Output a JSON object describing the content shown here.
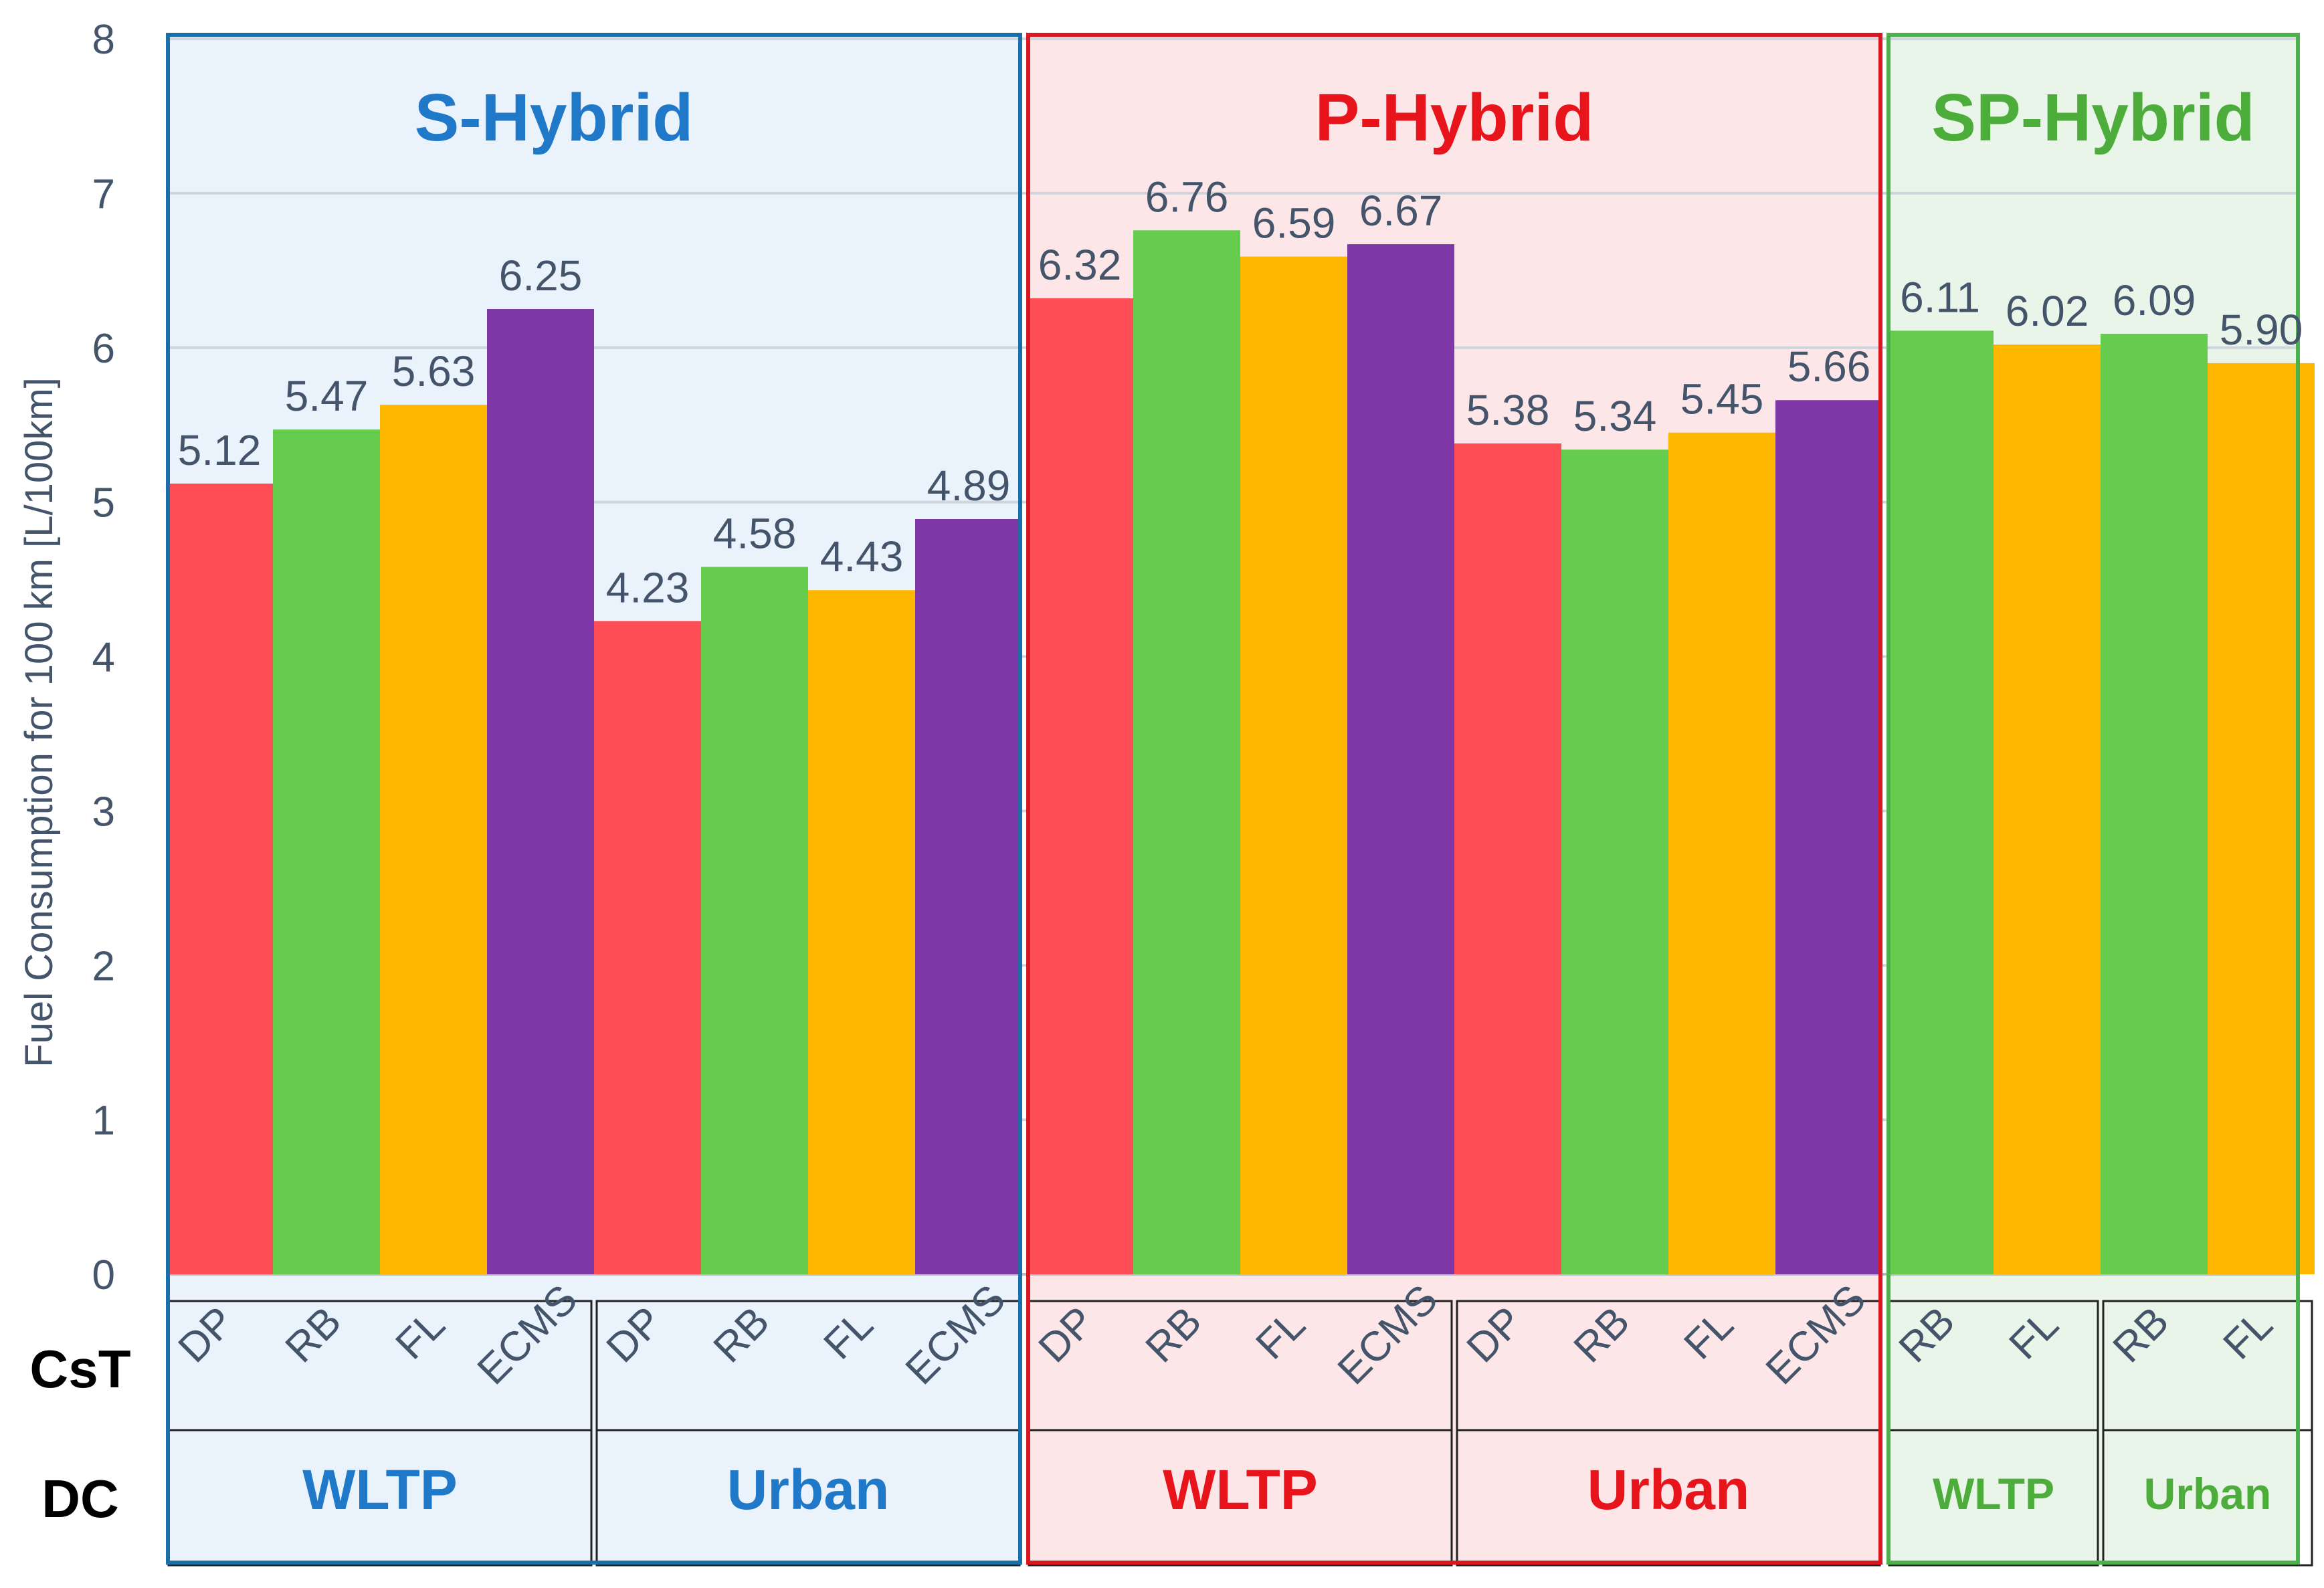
{
  "colors": {
    "s_hybrid": "#1f78c8",
    "p_hybrid": "#e8141c",
    "sp_hybrid": "#4cad3a",
    "DP": "#ff4d55",
    "RB": "#66cc4d",
    "FL": "#ffb800",
    "ECMS": "#7f37a8",
    "grid": "#d0d4dc"
  },
  "chart_data": {
    "type": "bar",
    "ylabel": "Fuel Consumption for 100 km [L/100km]",
    "ylim": [
      0,
      8
    ],
    "yticks": [
      0,
      1,
      2,
      3,
      4,
      5,
      6,
      7,
      8
    ],
    "grid": true,
    "row_labels": {
      "cst": "CsT",
      "dc": "DC"
    },
    "groups": [
      {
        "name": "S-Hybrid",
        "cycles": [
          {
            "name": "WLTP",
            "bars": [
              {
                "cst": "DP",
                "value": 5.12,
                "label": "5.12"
              },
              {
                "cst": "RB",
                "value": 5.47,
                "label": "5.47"
              },
              {
                "cst": "FL",
                "value": 5.63,
                "label": "5.63"
              },
              {
                "cst": "ECMS",
                "value": 6.25,
                "label": "6.25"
              }
            ]
          },
          {
            "name": "Urban",
            "bars": [
              {
                "cst": "DP",
                "value": 4.23,
                "label": "4.23"
              },
              {
                "cst": "RB",
                "value": 4.58,
                "label": "4.58"
              },
              {
                "cst": "FL",
                "value": 4.43,
                "label": "4.43"
              },
              {
                "cst": "ECMS",
                "value": 4.89,
                "label": "4.89"
              }
            ]
          }
        ]
      },
      {
        "name": "P-Hybrid",
        "cycles": [
          {
            "name": "WLTP",
            "bars": [
              {
                "cst": "DP",
                "value": 6.32,
                "label": "6.32"
              },
              {
                "cst": "RB",
                "value": 6.76,
                "label": "6.76"
              },
              {
                "cst": "FL",
                "value": 6.59,
                "label": "6.59"
              },
              {
                "cst": "ECMS",
                "value": 6.67,
                "label": "6.67"
              }
            ]
          },
          {
            "name": "Urban",
            "bars": [
              {
                "cst": "DP",
                "value": 5.38,
                "label": "5.38"
              },
              {
                "cst": "RB",
                "value": 5.34,
                "label": "5.34"
              },
              {
                "cst": "FL",
                "value": 5.45,
                "label": "5.45"
              },
              {
                "cst": "ECMS",
                "value": 5.66,
                "label": "5.66"
              }
            ]
          }
        ]
      },
      {
        "name": "SP-Hybrid",
        "cycles": [
          {
            "name": "WLTP",
            "bars": [
              {
                "cst": "RB",
                "value": 6.11,
                "label": "6.11"
              },
              {
                "cst": "FL",
                "value": 6.02,
                "label": "6.02"
              }
            ]
          },
          {
            "name": "Urban",
            "bars": [
              {
                "cst": "RB",
                "value": 6.09,
                "label": "6.09"
              },
              {
                "cst": "FL",
                "value": 5.9,
                "label": "5.90"
              }
            ]
          }
        ]
      }
    ]
  }
}
